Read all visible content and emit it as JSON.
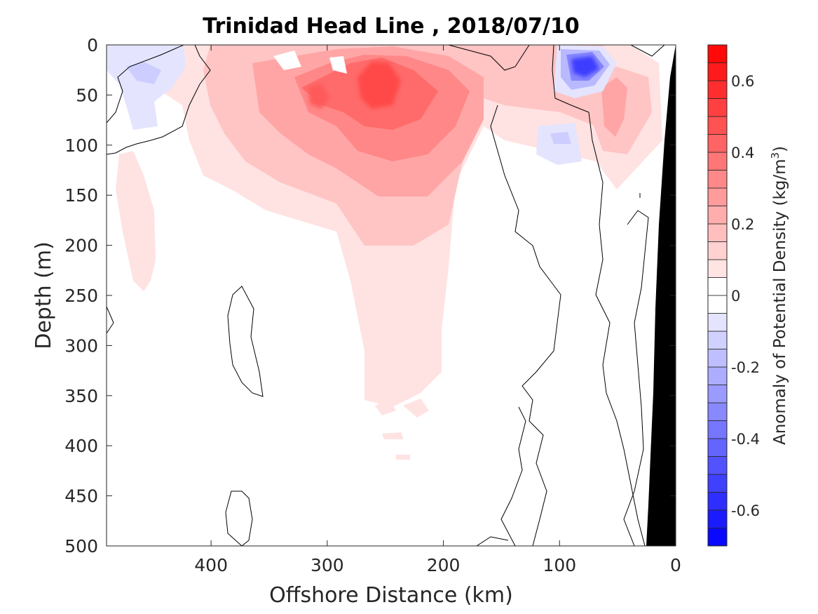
{
  "chart_data": {
    "type": "heatmap",
    "title": "Trinidad Head Line , 2018/07/10",
    "xlabel": "Offshore Distance (km)",
    "ylabel": "Depth (m)",
    "xlim": [
      490,
      0
    ],
    "ylim": [
      0,
      500
    ],
    "x_reversed": true,
    "y_reversed": true,
    "x_ticks": [
      400,
      300,
      200,
      100,
      0
    ],
    "y_ticks": [
      0,
      50,
      100,
      150,
      200,
      250,
      300,
      350,
      400,
      450,
      500
    ],
    "colorbar": {
      "label": "Anomaly of Potential Density (kg/m³)",
      "label_main": "Anomaly of Potential Density (kg/m",
      "label_sup": "3",
      "label_close": ")",
      "range": [
        -0.7,
        0.7
      ],
      "step": 0.05,
      "ticks": [
        -0.6,
        -0.4,
        -0.2,
        0,
        0.2,
        0.4,
        0.6
      ],
      "tick_labels": [
        "-0.6",
        "-0.4",
        "-0.2",
        "0",
        "0.2",
        "0.4",
        "0.6"
      ],
      "positive_color": "#ff0000",
      "negative_color": "#0000ff",
      "zero_color": "#ffffff"
    },
    "regions": [
      {
        "name": "core-high-anomaly",
        "x": 260,
        "y": 35,
        "value": 0.55
      },
      {
        "name": "secondary-high",
        "x": 310,
        "y": 50,
        "value": 0.45
      },
      {
        "name": "strong-negative-nearshore",
        "x": 80,
        "y": 25,
        "value": -0.6
      },
      {
        "name": "weak-negative-offshore",
        "x": 455,
        "y": 30,
        "value": -0.15
      },
      {
        "name": "weak-negative-mid",
        "x": 90,
        "y": 95,
        "value": -0.15
      },
      {
        "name": "positive-nearshore",
        "x": 50,
        "y": 75,
        "value": 0.25
      },
      {
        "name": "deep-positive-tongue",
        "x": 230,
        "y": 300,
        "value": 0.1
      }
    ],
    "bathymetry_color": "#000000"
  }
}
